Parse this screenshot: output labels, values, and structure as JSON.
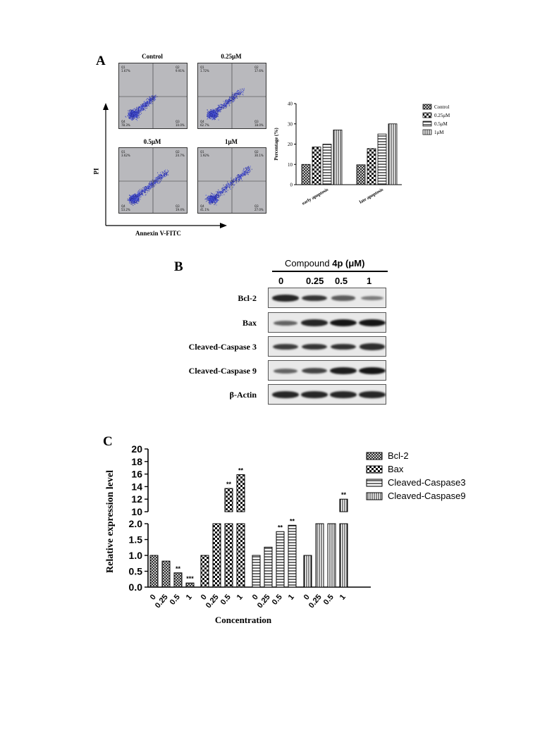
{
  "panelA": {
    "letter": "A",
    "flow": {
      "ylabel": "PI",
      "xlabel": "Annexin V-FITC",
      "plots": [
        {
          "title": "Control",
          "q1_label": "Q1",
          "q1": "1.67%",
          "q2_label": "Q2",
          "q2": "9.91%",
          "q3_label": "Q3",
          "q3": "10.0%",
          "q4_label": "Q4",
          "q4": "78.3%",
          "density": 0.55
        },
        {
          "title": "0.25μM",
          "q1_label": "Q1",
          "q1": "1.72%",
          "q2_label": "Q2",
          "q2": "17.6%",
          "q3_label": "Q3",
          "q3": "18.0%",
          "q4_label": "Q4",
          "q4": "62.7%",
          "density": 0.75
        },
        {
          "title": "0.5μM",
          "q1_label": "Q1",
          "q1": "3.62%",
          "q2_label": "Q2",
          "q2": "24.7%",
          "q3_label": "Q3",
          "q3": "19.4%",
          "q4_label": "Q4",
          "q4": "53.2%",
          "density": 0.85
        },
        {
          "title": "1μM",
          "q1_label": "Q1",
          "q1": "1.92%",
          "q2_label": "Q2",
          "q2": "30.1%",
          "q3_label": "Q3",
          "q3": "27.0%",
          "q4_label": "Q4",
          "q4": "41.1%",
          "density": 0.95
        }
      ]
    }
  },
  "chart_data": [
    {
      "type": "bar",
      "ylabel": "Percentage (%)",
      "xlabel": "",
      "ylim": [
        0,
        40
      ],
      "yticks": [
        "0",
        "10",
        "20",
        "30",
        "40"
      ],
      "categories": [
        "early apoptosis",
        "late apoptosis"
      ],
      "series": [
        {
          "name": "Control",
          "values": [
            10.0,
            9.8
          ],
          "pattern": "cross"
        },
        {
          "name": "0.25μM",
          "values": [
            18.6,
            17.8
          ],
          "pattern": "check"
        },
        {
          "name": "0.5μM",
          "values": [
            20.0,
            25.0
          ],
          "pattern": "hlines"
        },
        {
          "name": "1μM",
          "values": [
            27.0,
            30.0
          ],
          "pattern": "vlines"
        }
      ],
      "legend_position": "top-right"
    },
    {
      "type": "bar",
      "ylabel": "Relative expression level",
      "xlabel": "Concentration",
      "axis_break": true,
      "ylim_lower": [
        0,
        2.0
      ],
      "ylim_upper": [
        10,
        20
      ],
      "yticks_lower": [
        "0.0",
        "0.5",
        "1.0",
        "1.5",
        "2.0"
      ],
      "yticks_upper": [
        "10",
        "12",
        "14",
        "16",
        "18",
        "20"
      ],
      "groups": [
        {
          "name": "Bcl-2",
          "pattern": "cross",
          "categories": [
            "0",
            "0.25",
            "0.5",
            "1"
          ],
          "values": [
            1.0,
            0.82,
            0.45,
            0.13
          ],
          "sig": [
            "",
            "",
            "**",
            "***"
          ]
        },
        {
          "name": "Bax",
          "pattern": "check",
          "categories": [
            "0",
            "0.25",
            "0.5",
            "1"
          ],
          "values": [
            1.0,
            8.0,
            13.7,
            15.9
          ],
          "sig": [
            "",
            "",
            "**",
            "**"
          ]
        },
        {
          "name": "Cleaved-Caspase3",
          "pattern": "hlines",
          "categories": [
            "0",
            "0.25",
            "0.5",
            "1"
          ],
          "values": [
            1.0,
            1.26,
            1.75,
            1.95
          ],
          "sig": [
            "",
            "",
            "**",
            "**"
          ]
        },
        {
          "name": "Cleaved-Caspase9",
          "pattern": "vlines",
          "categories": [
            "0",
            "0.25",
            "0.5",
            "1"
          ],
          "values": [
            1.0,
            5.0,
            8.5,
            12.0
          ],
          "sig": [
            "",
            "",
            "",
            "**"
          ]
        }
      ],
      "legend_position": "top-right"
    }
  ],
  "panelB": {
    "letter": "B",
    "compound_prefix": "Compound ",
    "compound_bold": "4p",
    "compound_unit": " (μM)",
    "lanes": [
      "0",
      "0.25",
      "0.5",
      "1"
    ],
    "blots": [
      {
        "label": "Bcl-2",
        "intensity": [
          0.9,
          0.8,
          0.55,
          0.35
        ]
      },
      {
        "label": "Bax",
        "intensity": [
          0.5,
          0.9,
          1.0,
          1.0
        ]
      },
      {
        "label": "Cleaved-Caspase 3",
        "intensity": [
          0.75,
          0.8,
          0.82,
          0.85
        ]
      },
      {
        "label": "Cleaved-Caspase 9",
        "intensity": [
          0.5,
          0.7,
          0.95,
          1.0
        ]
      },
      {
        "label": "β-Actin",
        "intensity": [
          0.9,
          0.9,
          0.9,
          0.9
        ]
      }
    ]
  },
  "panelC": {
    "letter": "C"
  }
}
